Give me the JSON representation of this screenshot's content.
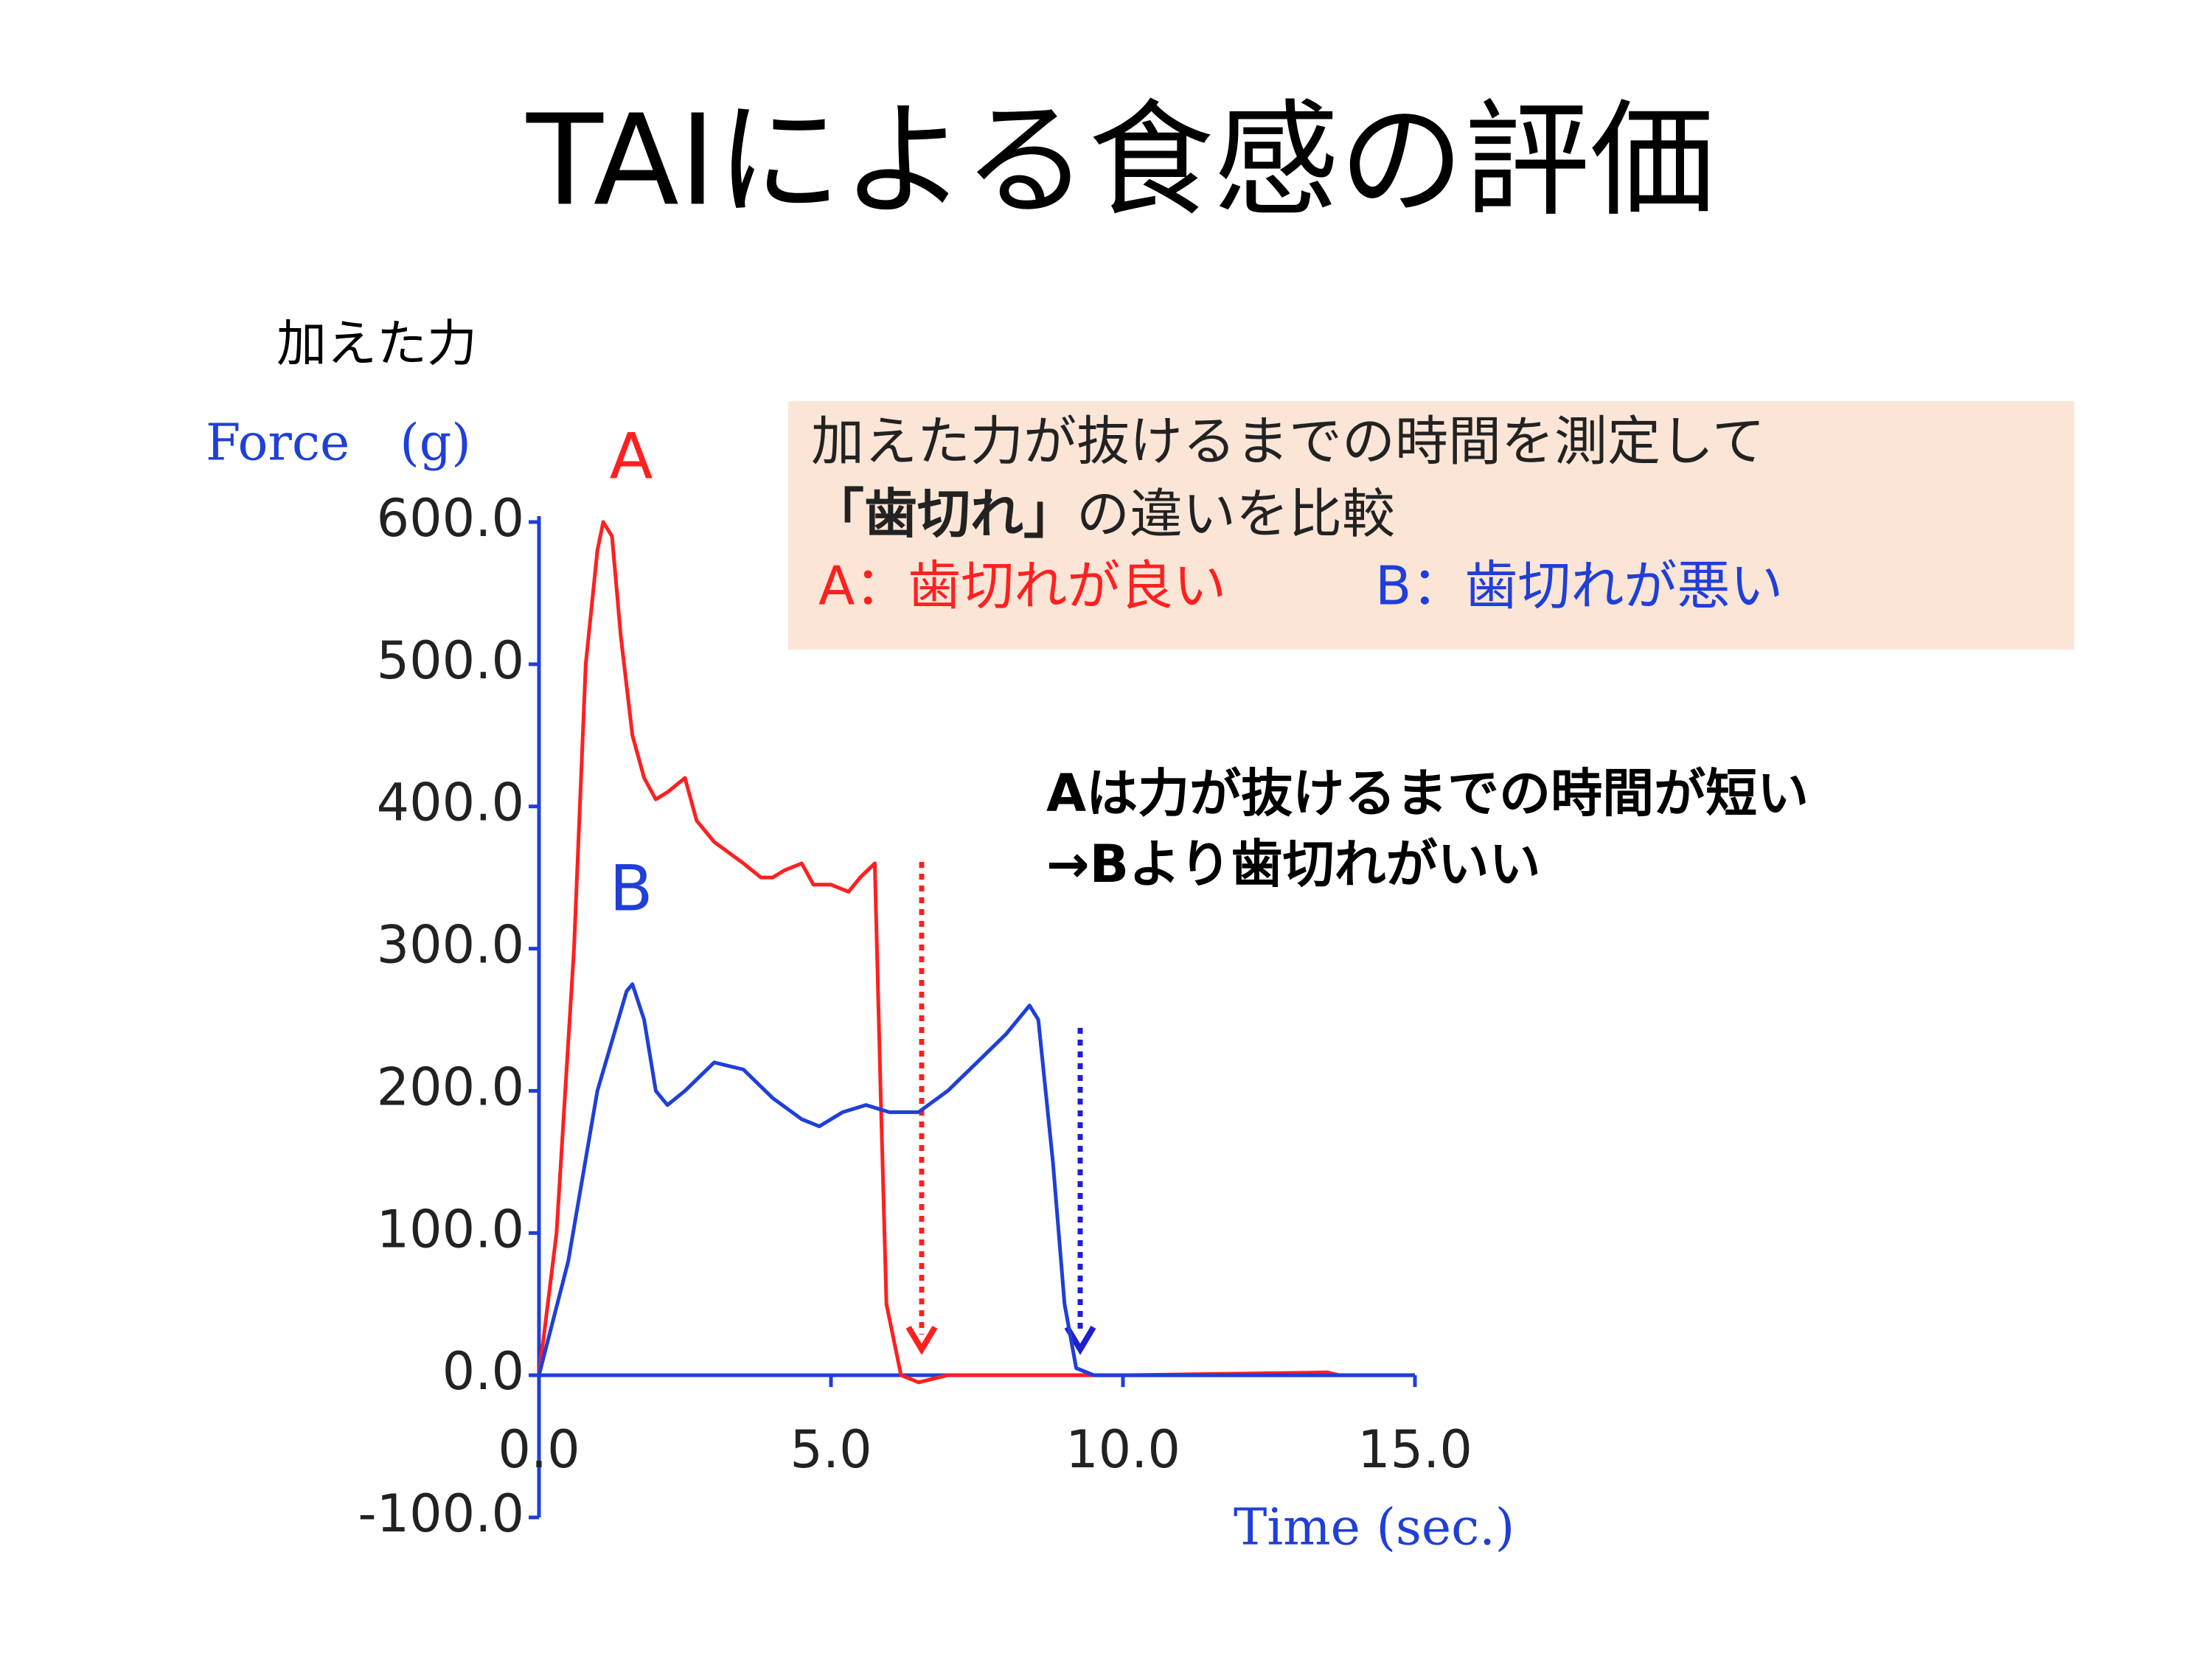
{
  "title": "TAIによる食感の評価",
  "y_note": "加えた力",
  "info_box": {
    "line1": "加えた力が抜けるまでの時間を測定して",
    "line2_bold": "「歯切れ」",
    "line2_rest": "の違いを比較",
    "line3_a": "A：歯切れが良い",
    "line3_b": "B：歯切れが悪い"
  },
  "conclusion": [
    "Aは力が抜けるまでの時間が短い",
    "→Bより歯切れがいい"
  ],
  "chart_data": {
    "type": "line",
    "y_label": "Force　(g)",
    "x_label": "Time (sec.)",
    "xlim": [
      0,
      15
    ],
    "ylim": [
      -100,
      600
    ],
    "xticks": [
      {
        "value": 0,
        "label": "0.0"
      },
      {
        "value": 5,
        "label": "5.0"
      },
      {
        "value": 10,
        "label": "10.0"
      },
      {
        "value": 15,
        "label": "15.0"
      }
    ],
    "yticks": [
      {
        "value": -100,
        "label": "-100.0"
      },
      {
        "value": 0,
        "label": "0.0"
      },
      {
        "value": 100,
        "label": "100.0"
      },
      {
        "value": 200,
        "label": "200.0"
      },
      {
        "value": 300,
        "label": "300.0"
      },
      {
        "value": 400,
        "label": "400.0"
      },
      {
        "value": 500,
        "label": "500.0"
      },
      {
        "value": 600,
        "label": "600.0"
      }
    ],
    "series": [
      {
        "name": "A",
        "color": "#ff2020",
        "x": [
          0,
          0.3,
          0.6,
          0.8,
          1.0,
          1.1,
          1.25,
          1.4,
          1.6,
          1.8,
          2.0,
          2.2,
          2.5,
          2.7,
          3.0,
          3.5,
          3.8,
          4.0,
          4.2,
          4.5,
          4.7,
          5.0,
          5.3,
          5.5,
          5.75,
          5.85,
          5.95,
          6.2,
          6.5,
          7.0,
          10.0,
          13.5,
          13.7
        ],
        "values": [
          0,
          100,
          300,
          500,
          580,
          600,
          590,
          520,
          450,
          420,
          405,
          410,
          420,
          390,
          375,
          360,
          350,
          350,
          355,
          360,
          345,
          345,
          340,
          350,
          360,
          200,
          50,
          0,
          -5,
          0,
          0,
          2,
          0
        ]
      },
      {
        "name": "B",
        "color": "#1f3fd8",
        "x": [
          0,
          0.5,
          1.0,
          1.5,
          1.6,
          1.8,
          2.0,
          2.2,
          2.5,
          3.0,
          3.5,
          4.0,
          4.5,
          4.8,
          5.2,
          5.6,
          6.0,
          6.5,
          7.0,
          7.5,
          8.0,
          8.4,
          8.55,
          8.8,
          9.0,
          9.2,
          9.5,
          15.0
        ],
        "values": [
          0,
          80,
          200,
          270,
          275,
          250,
          200,
          190,
          200,
          220,
          215,
          195,
          180,
          175,
          185,
          190,
          185,
          185,
          200,
          220,
          240,
          260,
          250,
          150,
          50,
          5,
          0,
          0
        ]
      }
    ]
  }
}
